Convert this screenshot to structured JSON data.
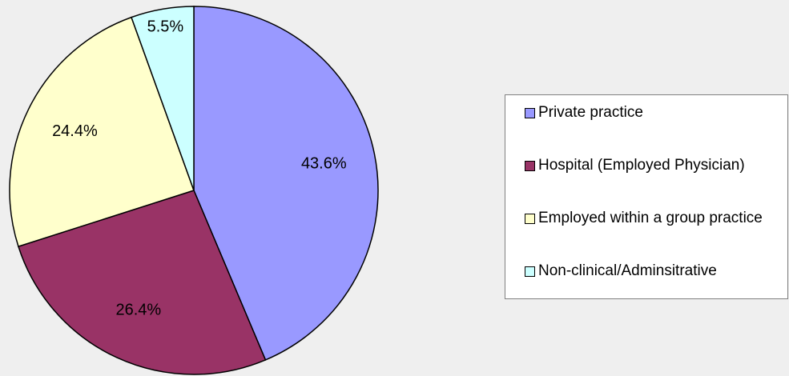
{
  "chart_data": {
    "type": "pie",
    "categories": [
      "Private practice",
      "Hospital (Employed Physician)",
      "Employed within a group practice",
      "Non-clinical/Adminsitrative"
    ],
    "values": [
      43.6,
      26.4,
      24.4,
      5.5
    ],
    "value_labels": [
      "43.6%",
      "26.4%",
      "24.4%",
      "5.5%"
    ],
    "colors": [
      "#9999ff",
      "#993366",
      "#ffffcc",
      "#ccffff"
    ],
    "legend": "right"
  }
}
